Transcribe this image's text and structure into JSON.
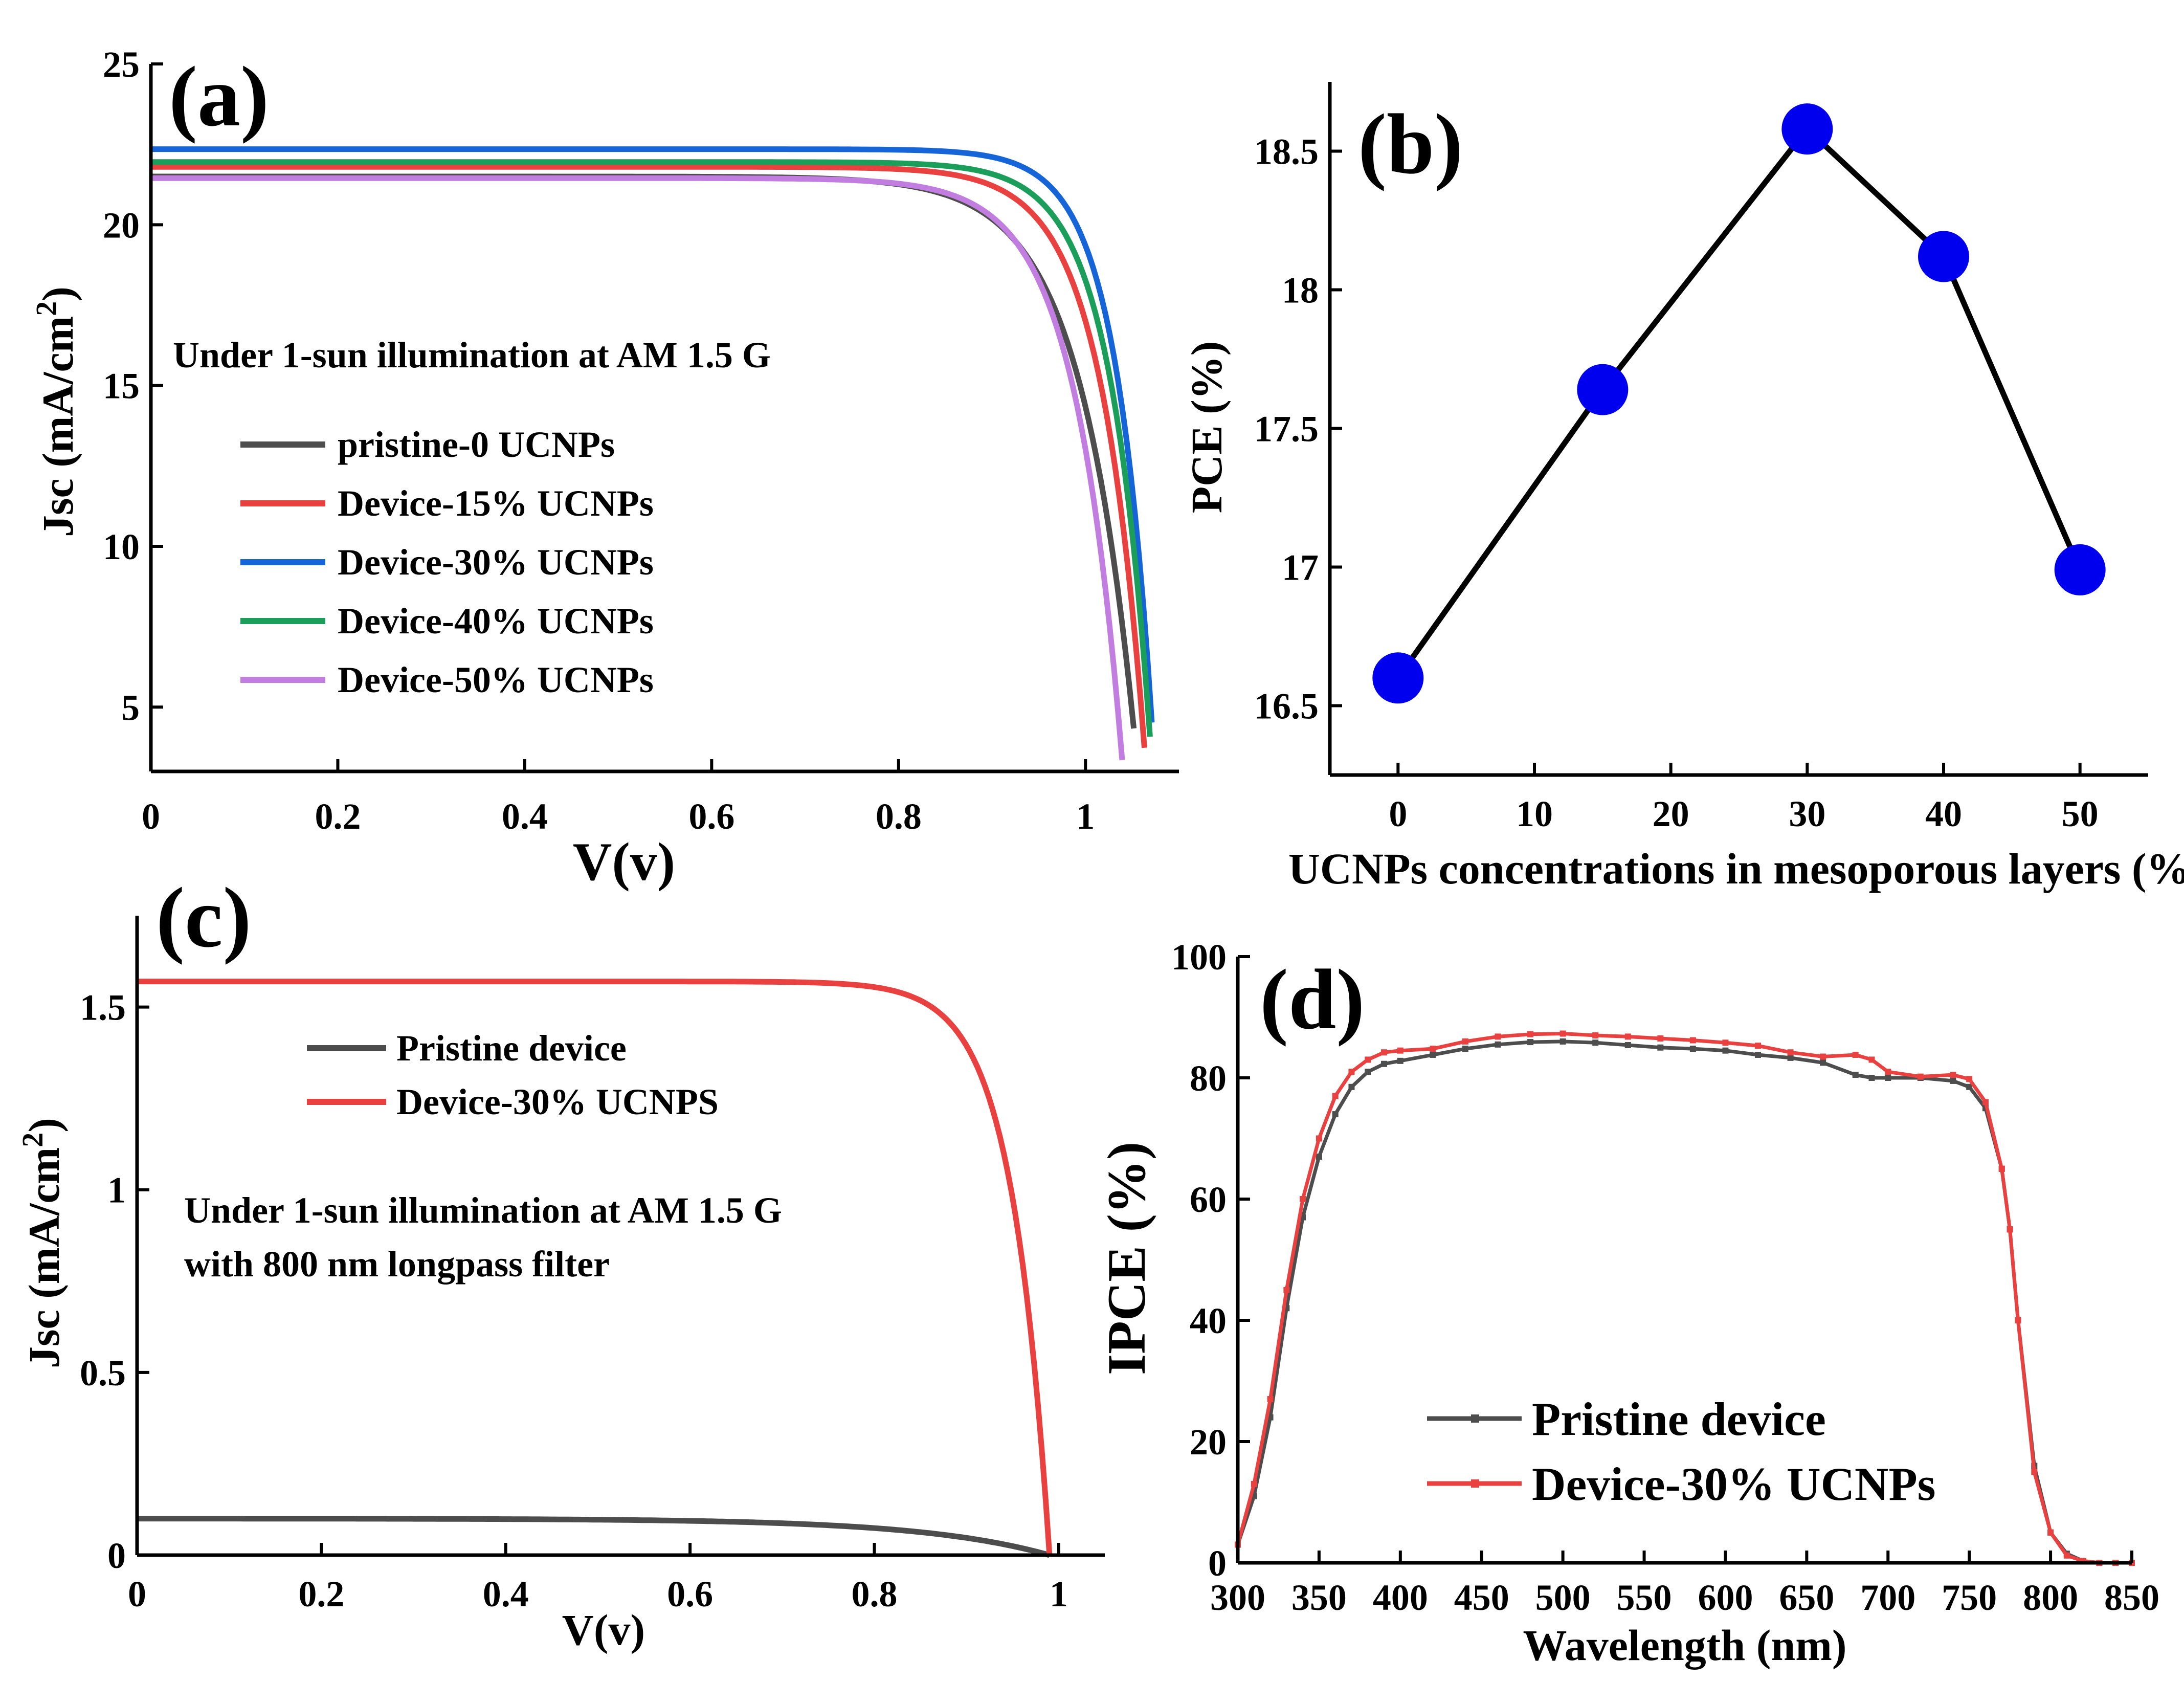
{
  "figure": {
    "panels": [
      {
        "label": "(a)"
      },
      {
        "label": "(b)"
      },
      {
        "label": "(c)"
      },
      {
        "label": "(d)"
      }
    ]
  },
  "chart_data": [
    {
      "panel": "(a)",
      "type": "line",
      "title": "",
      "xlabel": "V(v)",
      "ylabel_main": "Jsc (mA/cm",
      "ylabel_sup": "2",
      "ylabel_close": ")",
      "xlim": [
        0,
        1.1
      ],
      "ylim": [
        3,
        25
      ],
      "xticks": [
        0,
        0.2,
        0.4,
        0.6,
        0.8,
        1
      ],
      "xtick_labels": [
        "0",
        "0.2",
        "0.4",
        "0.6",
        "0.8",
        "1"
      ],
      "yticks": [
        5,
        10,
        15,
        20,
        25
      ],
      "ytick_labels": [
        "5",
        "10",
        "15",
        "20",
        "25"
      ],
      "annotation": "Under 1-sun illumination at AM 1.5 G",
      "legend_position": "center-left",
      "series": [
        {
          "name": "pristine-0 UCNPs",
          "color": "#4d4d4d",
          "jsc": 21.5,
          "voc": 1.065,
          "n": 2.3
        },
        {
          "name": "Device-15% UCNPs",
          "color": "#e8413f",
          "jsc": 21.8,
          "voc": 1.072,
          "n": 1.85
        },
        {
          "name": "Device-30% UCNPs",
          "color": "#1565d8",
          "jsc": 22.35,
          "voc": 1.08,
          "n": 1.55
        },
        {
          "name": "Device-40% UCNPs",
          "color": "#1b9e5a",
          "jsc": 21.95,
          "voc": 1.078,
          "n": 1.7
        },
        {
          "name": "Device-50% UCNPs",
          "color": "#c17ee0",
          "jsc": 21.45,
          "voc": 1.048,
          "n": 2.0
        }
      ]
    },
    {
      "panel": "(b)",
      "type": "line",
      "title": "",
      "xlabel": "UCNPs concentrations in mesoporous layers (%)",
      "ylabel": "PCE (%)",
      "xlim": [
        -5,
        55
      ],
      "ylim": [
        16.25,
        18.75
      ],
      "xticks": [
        0,
        10,
        20,
        30,
        40,
        50
      ],
      "xtick_labels": [
        "0",
        "10",
        "20",
        "30",
        "40",
        "50"
      ],
      "yticks": [
        16.5,
        17,
        17.5,
        18,
        18.5
      ],
      "ytick_labels": [
        "16.5",
        "17",
        "17.5",
        "18",
        "18.5"
      ],
      "marker_color": "#0000ee",
      "line_color": "#000000",
      "x": [
        0,
        15,
        30,
        40,
        50
      ],
      "y": [
        16.6,
        17.64,
        18.58,
        18.12,
        16.99
      ]
    },
    {
      "panel": "(c)",
      "type": "line",
      "title": "",
      "xlabel": "V(v)",
      "ylabel_main": "Jsc (mA/cm",
      "ylabel_sup": "2",
      "ylabel_close": ")",
      "xlim": [
        0,
        1.05
      ],
      "ylim": [
        0,
        1.75
      ],
      "xticks": [
        0,
        0.2,
        0.4,
        0.6,
        0.8,
        1
      ],
      "xtick_labels": [
        "0",
        "0.2",
        "0.4",
        "0.6",
        "0.8",
        "1"
      ],
      "yticks": [
        0,
        0.5,
        1,
        1.5
      ],
      "ytick_labels": [
        "0",
        "0.5",
        "1",
        "1.5"
      ],
      "annotation_line1": "Under 1-sun illumination at AM 1.5 G",
      "annotation_line2": "with 800 nm longpass filter",
      "legend_position": "top-left",
      "series": [
        {
          "name": "Pristine device",
          "color": "#4d4d4d",
          "jsc": 0.1,
          "voc": 0.99,
          "n": 5.5
        },
        {
          "name": "Device-30% UCNPS",
          "color": "#e8413f",
          "jsc": 1.57,
          "voc": 0.99,
          "n": 1.6
        }
      ]
    },
    {
      "panel": "(d)",
      "type": "line",
      "title": "",
      "xlabel": "Wavelength (nm)",
      "ylabel": "IPCE (%)",
      "xlim": [
        300,
        850
      ],
      "ylim": [
        0,
        100
      ],
      "xticks": [
        300,
        350,
        400,
        450,
        500,
        550,
        600,
        650,
        700,
        750,
        800,
        850
      ],
      "xtick_labels": [
        "300",
        "350",
        "400",
        "450",
        "500",
        "550",
        "600",
        "650",
        "700",
        "750",
        "800",
        "850"
      ],
      "yticks": [
        0,
        20,
        40,
        60,
        80,
        100
      ],
      "ytick_labels": [
        "0",
        "20",
        "40",
        "60",
        "80",
        "100"
      ],
      "legend_position": "bottom-center",
      "series": [
        {
          "name": "Pristine device",
          "color": "#4d4d4d",
          "x": [
            300,
            310,
            320,
            330,
            340,
            350,
            360,
            370,
            380,
            390,
            400,
            420,
            440,
            460,
            480,
            500,
            520,
            540,
            560,
            580,
            600,
            620,
            640,
            660,
            680,
            690,
            700,
            720,
            740,
            750,
            760,
            770,
            775,
            780,
            790,
            800,
            810,
            820,
            830,
            840,
            850
          ],
          "y": [
            3,
            11,
            24,
            42,
            57,
            67,
            74,
            78.5,
            81,
            82.3,
            82.8,
            83.8,
            84.8,
            85.5,
            85.9,
            86,
            85.8,
            85.4,
            85,
            84.8,
            84.5,
            83.8,
            83.3,
            82.5,
            80.5,
            80,
            80,
            80,
            79.5,
            78.5,
            75,
            65,
            55,
            40,
            16,
            5,
            1.5,
            0.3,
            0,
            0,
            0
          ]
        },
        {
          "name": "Device-30% UCNPs",
          "color": "#e8413f",
          "x": [
            300,
            310,
            320,
            330,
            340,
            350,
            360,
            370,
            380,
            390,
            400,
            420,
            440,
            460,
            480,
            500,
            520,
            540,
            560,
            580,
            600,
            620,
            640,
            660,
            680,
            690,
            700,
            720,
            740,
            750,
            760,
            770,
            775,
            780,
            790,
            800,
            810,
            820,
            830,
            840,
            850
          ],
          "y": [
            3,
            13,
            27,
            45,
            60,
            70,
            77,
            81,
            83,
            84.2,
            84.5,
            84.8,
            86,
            86.8,
            87.2,
            87.3,
            87,
            86.8,
            86.5,
            86.2,
            85.8,
            85.3,
            84.2,
            83.5,
            83.8,
            83,
            81,
            80.2,
            80.5,
            79.8,
            76,
            65,
            55,
            40,
            15,
            5,
            1.2,
            0.3,
            0,
            0,
            0
          ]
        }
      ]
    }
  ]
}
